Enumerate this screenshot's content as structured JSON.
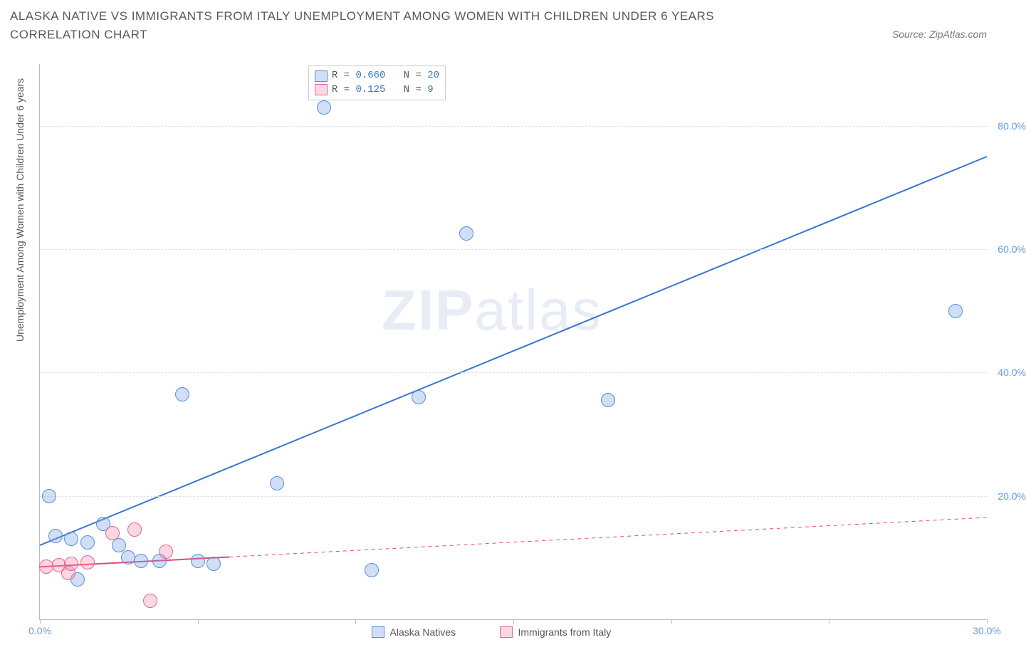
{
  "title": "ALASKA NATIVE VS IMMIGRANTS FROM ITALY UNEMPLOYMENT AMONG WOMEN WITH CHILDREN UNDER 6 YEARS CORRELATION CHART",
  "source": "Source: ZipAtlas.com",
  "ylabel": "Unemployment Among Women with Children Under 6 years",
  "watermark_bold": "ZIP",
  "watermark_light": "atlas",
  "chart": {
    "type": "scatter-with-regression",
    "background_color": "#ffffff",
    "grid_color": "#e0e0e0",
    "axis_color": "#bbbbbb",
    "ytick_color": "#6699e0",
    "xtick_color": "#6699e0",
    "xlim": [
      0,
      30
    ],
    "ylim": [
      0,
      90
    ],
    "xticks": [
      0,
      30
    ],
    "xtick_labels": [
      "0.0%",
      "30.0%"
    ],
    "xtick_minor": [
      5,
      10,
      15,
      20,
      25
    ],
    "yticks": [
      20,
      40,
      60,
      80
    ],
    "ytick_labels": [
      "20.0%",
      "40.0%",
      "60.0%",
      "80.0%"
    ],
    "marker_radius": 9,
    "marker_stroke_width": 1.2,
    "line_width": 2,
    "series": [
      {
        "name": "Alaska Natives",
        "fill": "rgba(120,160,230,0.35)",
        "stroke": "#5b8fd6",
        "line_color": "#3b74d1",
        "R": "0.660",
        "N": "20",
        "points": [
          {
            "x": 0.3,
            "y": 20.0
          },
          {
            "x": 0.5,
            "y": 13.5
          },
          {
            "x": 1.0,
            "y": 13.0
          },
          {
            "x": 1.5,
            "y": 12.5
          },
          {
            "x": 2.0,
            "y": 15.5
          },
          {
            "x": 2.5,
            "y": 12.0
          },
          {
            "x": 2.8,
            "y": 10.0
          },
          {
            "x": 3.2,
            "y": 9.5
          },
          {
            "x": 1.2,
            "y": 6.5
          },
          {
            "x": 3.8,
            "y": 9.5
          },
          {
            "x": 4.5,
            "y": 36.5
          },
          {
            "x": 5.0,
            "y": 9.5
          },
          {
            "x": 5.5,
            "y": 9.0
          },
          {
            "x": 7.5,
            "y": 22.0
          },
          {
            "x": 9.0,
            "y": 83.0
          },
          {
            "x": 10.5,
            "y": 8.0
          },
          {
            "x": 12.0,
            "y": 36.0
          },
          {
            "x": 13.5,
            "y": 62.5
          },
          {
            "x": 18.0,
            "y": 35.5
          },
          {
            "x": 29.0,
            "y": 50.0
          }
        ],
        "regression": {
          "x1": 0,
          "y1": 12.0,
          "x2": 30,
          "y2": 75.0
        }
      },
      {
        "name": "Immigrants from Italy",
        "fill": "rgba(240,140,170,0.35)",
        "stroke": "#e06890",
        "line_color": "#e9427a",
        "R": "0.125",
        "N": " 9",
        "points": [
          {
            "x": 0.2,
            "y": 8.5
          },
          {
            "x": 0.6,
            "y": 8.8
          },
          {
            "x": 0.9,
            "y": 7.5
          },
          {
            "x": 1.0,
            "y": 9.0
          },
          {
            "x": 1.5,
            "y": 9.2
          },
          {
            "x": 2.3,
            "y": 14.0
          },
          {
            "x": 3.0,
            "y": 14.5
          },
          {
            "x": 3.5,
            "y": 3.0
          },
          {
            "x": 4.0,
            "y": 11.0
          }
        ],
        "regression": {
          "x1": 0,
          "y1": 8.5,
          "x2": 30,
          "y2": 16.5
        },
        "regression_solid_until_x": 6.0
      }
    ]
  },
  "legend_top": {
    "R_label": "R =",
    "N_label": "N ="
  },
  "legend_bottom": [
    {
      "label": "Alaska Natives",
      "fill": "rgba(120,160,230,0.35)",
      "stroke": "#5b8fd6"
    },
    {
      "label": "Immigrants from Italy",
      "fill": "rgba(240,140,170,0.35)",
      "stroke": "#e06890"
    }
  ]
}
